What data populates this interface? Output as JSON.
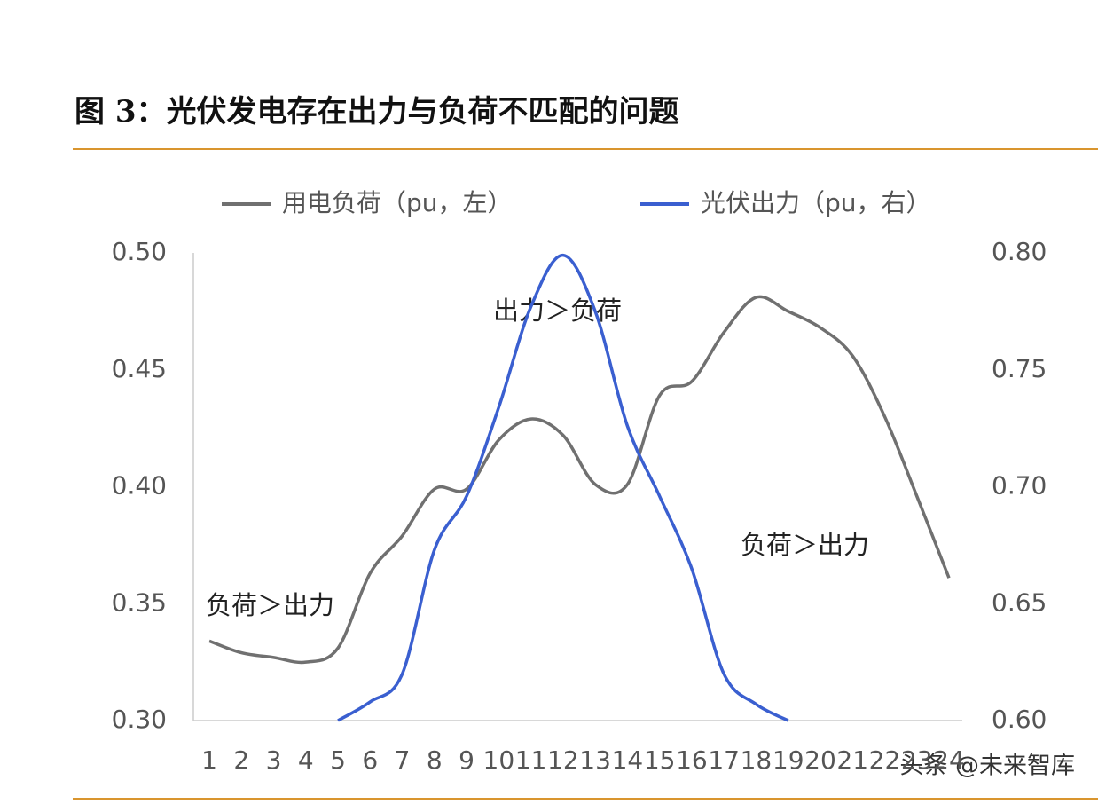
{
  "chart_data": {
    "type": "line",
    "title": "图 3：光伏发电存在出力与负荷不匹配的问题",
    "categories": [
      "1",
      "2",
      "3",
      "4",
      "5",
      "6",
      "7",
      "8",
      "9",
      "10",
      "11",
      "12",
      "13",
      "14",
      "15",
      "16",
      "17",
      "18",
      "19",
      "20",
      "21",
      "22",
      "23",
      "24"
    ],
    "series": [
      {
        "name": "用电负荷（pu，左）",
        "color": "#707070",
        "values": [
          0.334,
          0.329,
          0.327,
          0.325,
          0.331,
          0.363,
          0.379,
          0.399,
          0.399,
          0.42,
          0.429,
          0.422,
          0.401,
          0.401,
          0.439,
          0.445,
          0.466,
          0.481,
          0.475,
          0.468,
          0.456,
          0.43,
          0.396,
          0.361
        ]
      },
      {
        "name": "光伏出力（pu，右）",
        "color": "#3a5fd0",
        "axis": "y2",
        "values": [
          null,
          null,
          null,
          null,
          0.6,
          0.608,
          0.62,
          0.673,
          0.696,
          0.734,
          0.777,
          0.799,
          0.775,
          0.726,
          0.696,
          0.665,
          0.62,
          0.607,
          0.6,
          null,
          null,
          null,
          null,
          null
        ]
      }
    ],
    "ylim": [
      0.3,
      0.5
    ],
    "yticks": [
      {
        "value": 0.3,
        "label": "0.30"
      },
      0.35,
      {
        "value": 0.4,
        "label": "0.40"
      },
      0.45,
      {
        "value": 0.5,
        "label": "0.50"
      }
    ],
    "y2lim": [
      0.6,
      0.8
    ],
    "y2ticks": [
      {
        "value": 0.6,
        "label": "0.60"
      },
      0.65,
      {
        "value": 0.7,
        "label": "0.70"
      },
      0.75,
      {
        "value": 0.8,
        "label": "0.80"
      }
    ],
    "annotations": [
      "出力＞负荷",
      "负荷＞出力",
      "负荷＞出力"
    ],
    "watermark": "头条 @未来智库",
    "grid": false
  }
}
